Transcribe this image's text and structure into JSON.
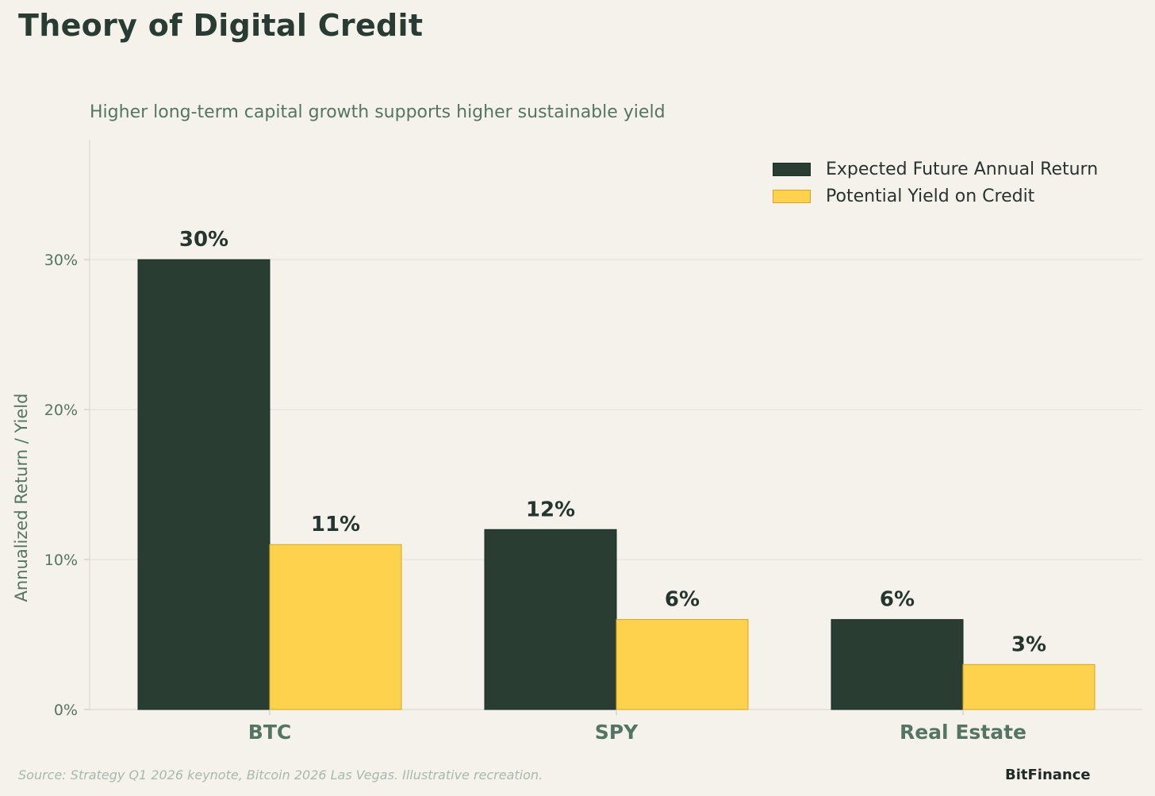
{
  "header": {
    "title": "Theory of Digital Credit",
    "subtitle": "Higher long-term capital growth supports higher sustainable yield"
  },
  "footer": {
    "source": "Source: Strategy Q1 2026 keynote, Bitcoin 2026 Las Vegas. Illustrative recreation.",
    "brand": "BitFinance"
  },
  "colors": {
    "return": "#2a3d33",
    "yield": "#ffd24d",
    "yield_edge": "#d9a520",
    "grid": "#e4e2dc",
    "axis_text": "#557564"
  },
  "chart_data": {
    "type": "bar",
    "title": "Theory of Digital Credit",
    "subtitle": "Higher long-term capital growth supports higher sustainable yield",
    "xlabel": "",
    "ylabel": "Annualized Return / Yield",
    "categories": [
      "BTC",
      "SPY",
      "Real Estate"
    ],
    "series": [
      {
        "name": "Expected Future Annual Return",
        "values": [
          30,
          12,
          6
        ],
        "labels": [
          "30%",
          "12%",
          "6%"
        ]
      },
      {
        "name": "Potential Yield on Credit",
        "values": [
          11,
          6,
          3
        ],
        "labels": [
          "11%",
          "6%",
          "3%"
        ]
      }
    ],
    "ylim": [
      0,
      38
    ],
    "yticks": [
      0,
      10,
      20,
      30
    ],
    "ytick_labels": [
      "0%",
      "10%",
      "20%",
      "30%"
    ],
    "grid": true,
    "legend_position": "top-right"
  }
}
